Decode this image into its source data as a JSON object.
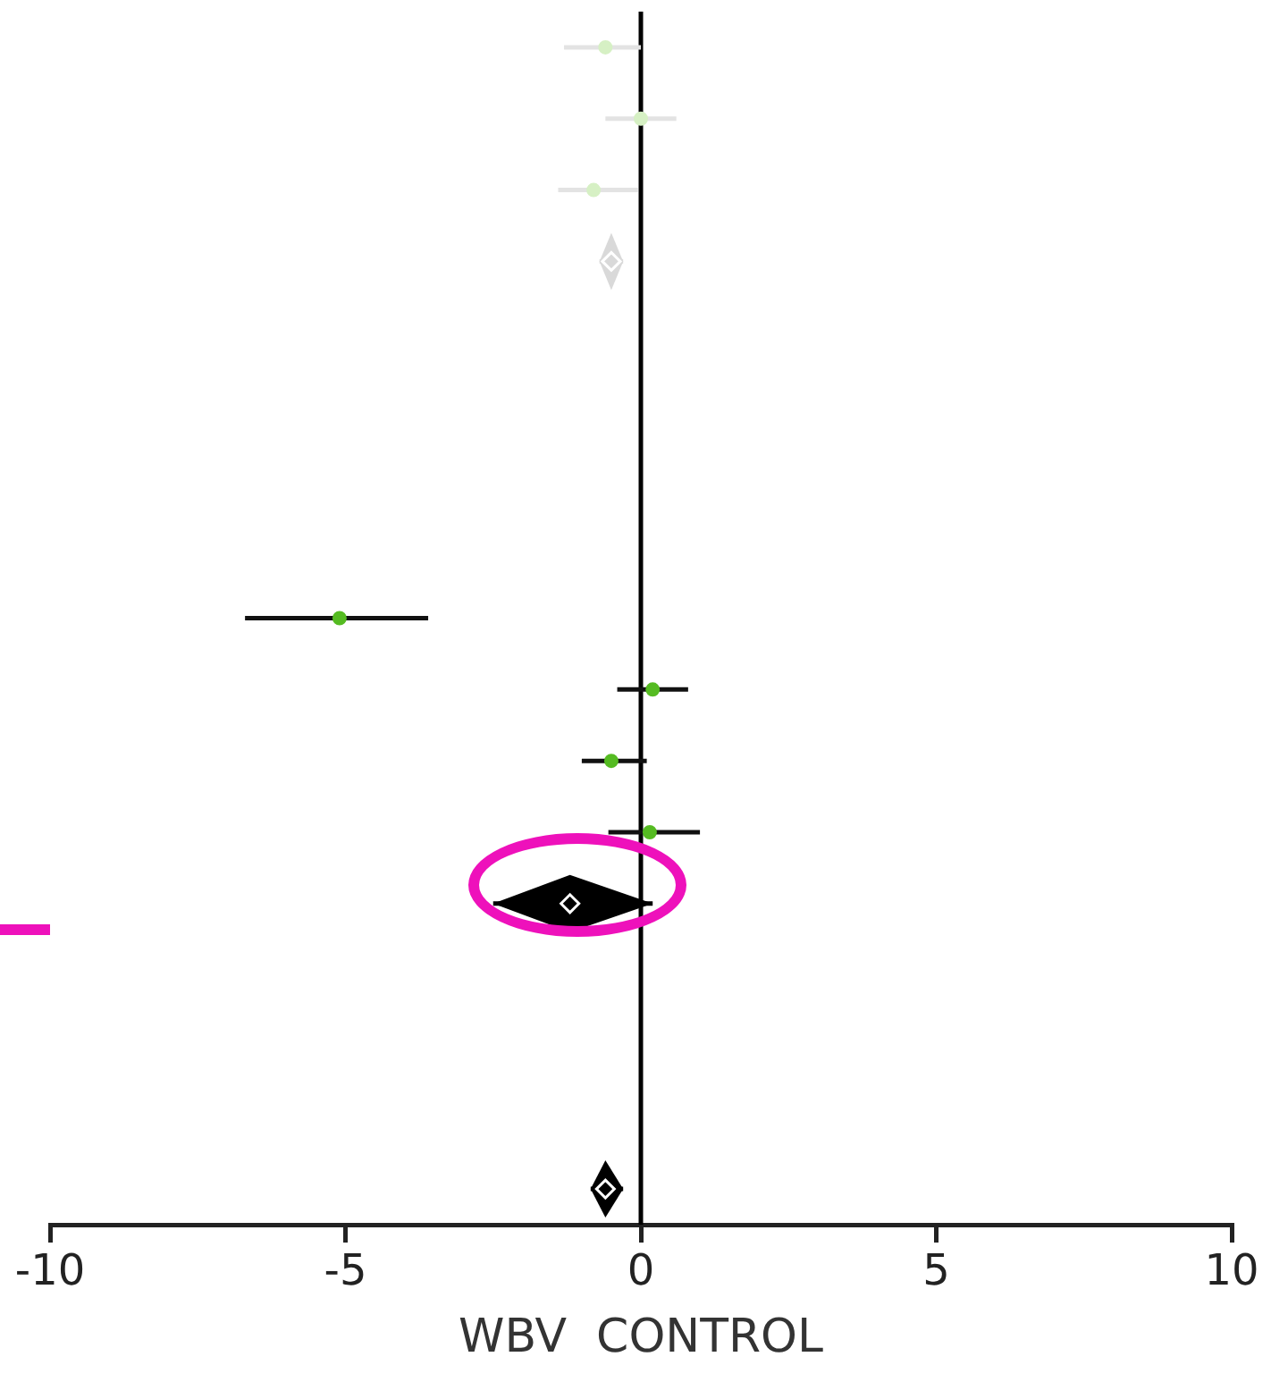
{
  "chart_data": {
    "type": "scatter",
    "orientation": "horizontal",
    "xlabel": "WBV  CONTROL",
    "categories": [
      null,
      null,
      null,
      null,
      null,
      null,
      null,
      null,
      null,
      null,
      null,
      null,
      null,
      null,
      null,
      null,
      null
    ],
    "xlim": [
      -10,
      10
    ],
    "xticks": [
      -10,
      -5,
      0,
      5,
      10
    ],
    "grid": false,
    "legend": false,
    "ref_lines": [
      {
        "axis": "x",
        "value": 0,
        "color": "#000000"
      }
    ],
    "series": [
      {
        "color": "#d6f0c4",
        "marker": "circle",
        "values": [
          -0.6,
          0,
          -0.8,
          null,
          null,
          null,
          null,
          null,
          null,
          null,
          null,
          null,
          null,
          null,
          null,
          null,
          null
        ],
        "errors": [
          [
            -1.3,
            0
          ],
          [
            -0.6,
            0.6
          ],
          [
            -1.4,
            -0.05
          ],
          null,
          null,
          null,
          null,
          null,
          null,
          null,
          null,
          null,
          null,
          null,
          null,
          null,
          null
        ]
      },
      {
        "color": "#d9d9d9",
        "marker": "diamond",
        "values": [
          null,
          null,
          null,
          -0.5,
          null,
          null,
          null,
          null,
          null,
          null,
          null,
          null,
          null,
          null,
          null,
          null,
          null
        ],
        "errors": [
          null,
          null,
          null,
          [
            -0.7,
            -0.3
          ],
          null,
          null,
          null,
          null,
          null,
          null,
          null,
          null,
          null,
          null,
          null,
          null,
          null
        ]
      },
      {
        "color": "#55bb22",
        "marker": "circle",
        "values": [
          null,
          null,
          null,
          null,
          null,
          null,
          null,
          null,
          -5.1,
          0.2,
          -0.5,
          0.15,
          null,
          null,
          null,
          null,
          null
        ],
        "errors": [
          null,
          null,
          null,
          null,
          null,
          null,
          null,
          null,
          [
            -6.7,
            -3.6
          ],
          [
            -0.4,
            0.8
          ],
          [
            -1,
            0.1
          ],
          [
            -0.55,
            1
          ],
          null,
          null,
          null,
          null,
          null
        ]
      },
      {
        "color": "#000000",
        "marker": "diamond",
        "values": [
          null,
          null,
          null,
          null,
          null,
          null,
          null,
          null,
          null,
          null,
          null,
          null,
          -1.2,
          null,
          null,
          null,
          -0.6
        ],
        "errors": [
          null,
          null,
          null,
          null,
          null,
          null,
          null,
          null,
          null,
          null,
          null,
          null,
          [
            -2.5,
            0.2
          ],
          null,
          null,
          null,
          [
            -0.85,
            -0.3
          ]
        ]
      }
    ]
  }
}
